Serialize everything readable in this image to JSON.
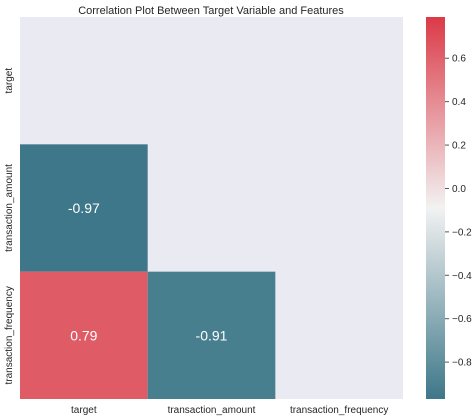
{
  "chart_data": {
    "type": "heatmap",
    "title": "Correlation Plot Between Target Variable and Features",
    "xlabel": "",
    "ylabel": "",
    "rows": [
      "target",
      "transaction_amount",
      "transaction_frequency"
    ],
    "columns": [
      "target",
      "transaction_amount",
      "transaction_frequency"
    ],
    "values": [
      [
        null,
        null,
        null
      ],
      [
        -0.97,
        null,
        null
      ],
      [
        0.79,
        -0.91,
        null
      ]
    ],
    "annotations": [
      [
        null,
        null,
        null
      ],
      [
        "-0.97",
        null,
        null
      ],
      [
        "0.79",
        "-0.91",
        null
      ]
    ],
    "mask": "upper triangle including diagonal",
    "colormap": {
      "low": "#3d7789",
      "mid": "#f2f2f2",
      "high": "#db3a47",
      "vmin": -0.97,
      "vmax": 0.79
    },
    "colorbar_ticks": [
      -0.8,
      -0.6,
      -0.4,
      -0.2,
      0.0,
      0.2,
      0.4,
      0.6
    ],
    "colorbar_tick_labels": [
      "−0.8",
      "−0.6",
      "−0.4",
      "−0.2",
      "0.0",
      "0.2",
      "0.4",
      "0.6"
    ],
    "background_color": "#eaeaf2",
    "annotation_color": "#ffffff"
  }
}
